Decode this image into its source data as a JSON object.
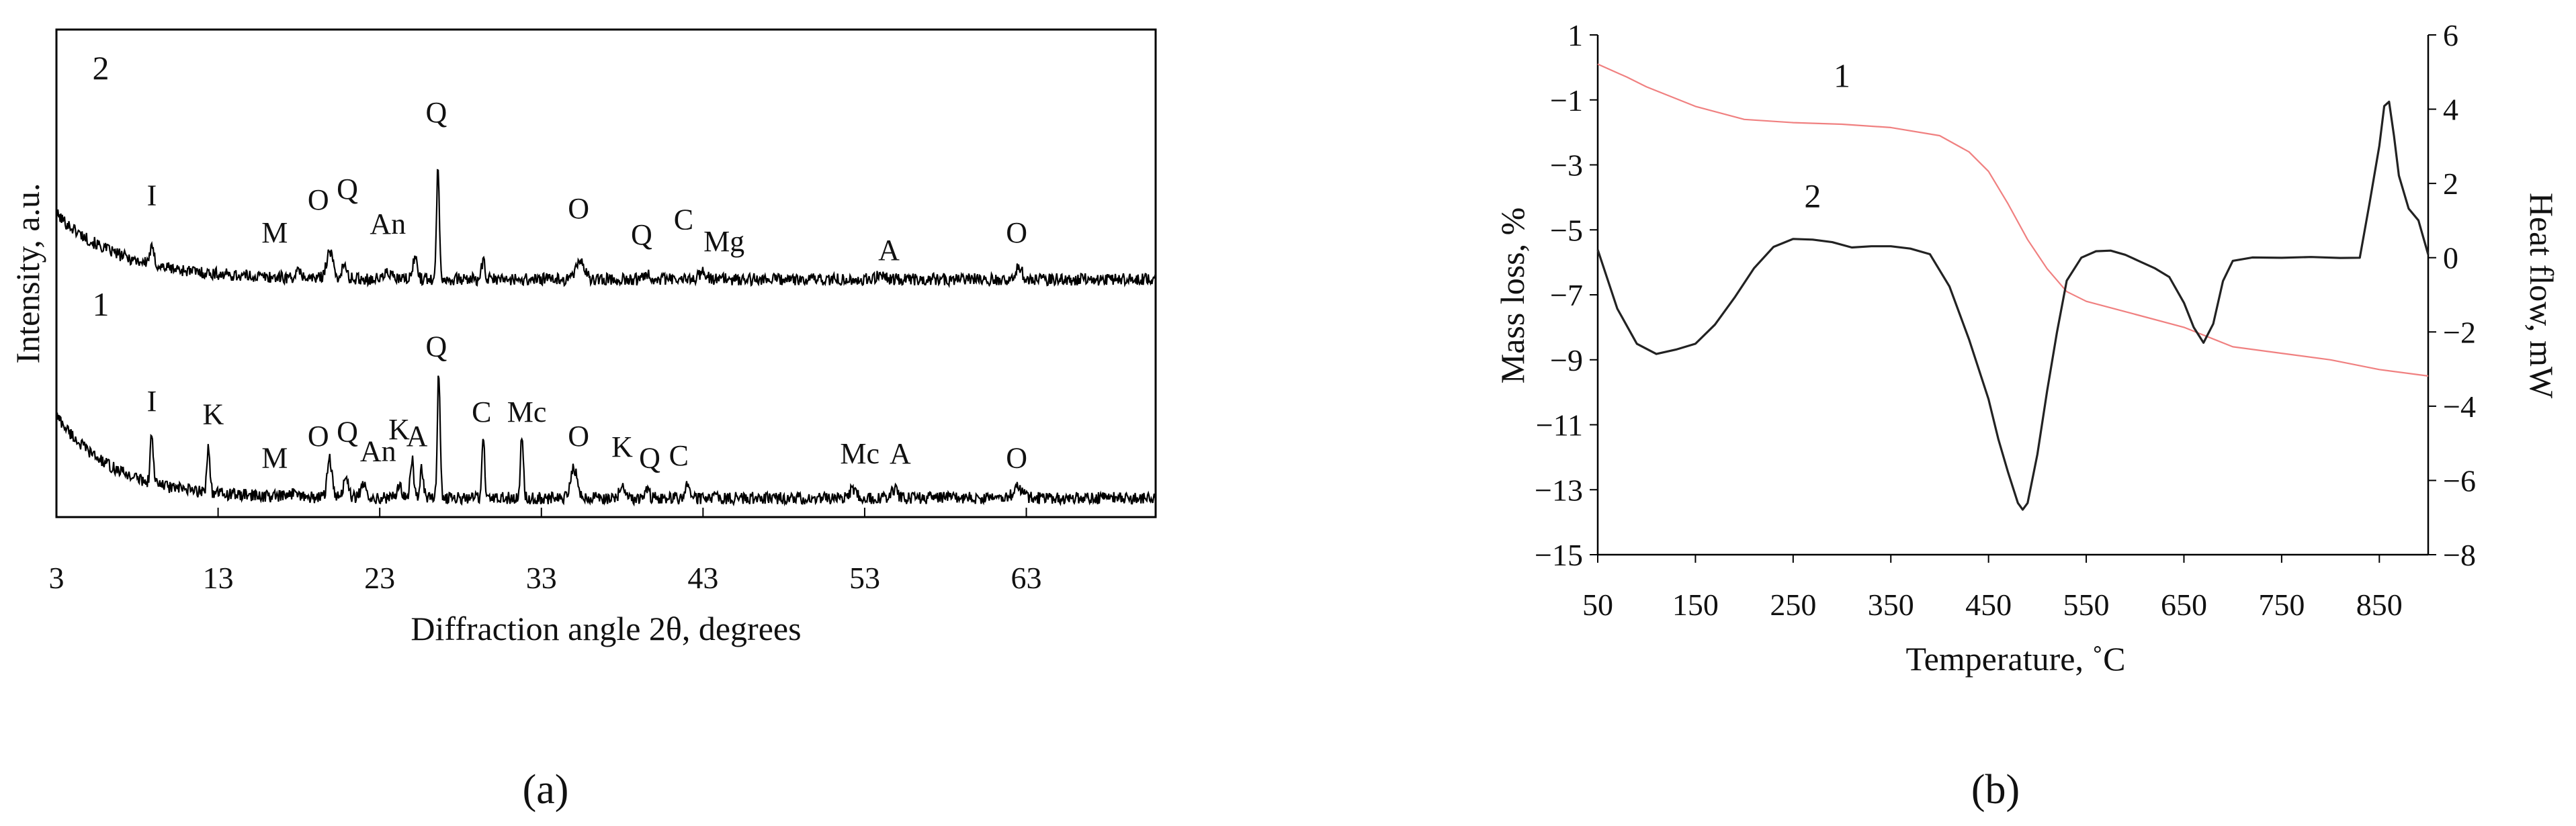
{
  "chart_data": [
    {
      "panel": "a",
      "panel_label": "(a)",
      "type": "line",
      "xlabel": "Diffraction angle 2θ, degrees",
      "ylabel": "Intensity, a.u.",
      "xlim": [
        3,
        71
      ],
      "x_ticks": [
        3,
        13,
        23,
        33,
        43,
        53,
        63
      ],
      "grid": false,
      "series": [
        {
          "name": "2",
          "baseline": 0.6,
          "decay_amplitude": 1.5,
          "decay_length": 4,
          "peaks": [
            {
              "x": 8.9,
              "h": 0.35,
              "w": 0.2
            },
            {
              "x": 18.0,
              "h": 0.12,
              "w": 0.3
            },
            {
              "x": 19.9,
              "h": 0.6,
              "w": 0.3
            },
            {
              "x": 20.8,
              "h": 0.3,
              "w": 0.2
            },
            {
              "x": 23.5,
              "h": 0.15,
              "w": 0.3
            },
            {
              "x": 25.2,
              "h": 0.5,
              "w": 0.2
            },
            {
              "x": 26.6,
              "h": 2.5,
              "w": 0.13
            },
            {
              "x": 29.4,
              "h": 0.4,
              "w": 0.15
            },
            {
              "x": 35.4,
              "h": 0.45,
              "w": 0.35
            },
            {
              "x": 39.5,
              "h": 0.15,
              "w": 0.3
            },
            {
              "x": 43.0,
              "h": 0.2,
              "w": 0.3
            },
            {
              "x": 54.0,
              "h": 0.12,
              "w": 0.4
            },
            {
              "x": 62.5,
              "h": 0.3,
              "w": 0.3
            }
          ],
          "peak_labels": [
            {
              "text": "I",
              "x": 8.9,
              "y": 2.3
            },
            {
              "text": "M",
              "x": 16.5,
              "y": 1.45
            },
            {
              "text": "O",
              "x": 19.2,
              "y": 2.2
            },
            {
              "text": "Q",
              "x": 21.0,
              "y": 2.45
            },
            {
              "text": "An",
              "x": 23.5,
              "y": 1.65
            },
            {
              "text": "Q",
              "x": 26.5,
              "y": 4.2
            },
            {
              "text": "O",
              "x": 35.3,
              "y": 2.0
            },
            {
              "text": "Q",
              "x": 39.2,
              "y": 1.4
            },
            {
              "text": "C",
              "x": 41.8,
              "y": 1.75
            },
            {
              "text": "Mg",
              "x": 44.3,
              "y": 1.25
            },
            {
              "text": "A",
              "x": 54.5,
              "y": 1.05
            },
            {
              "text": "O",
              "x": 62.4,
              "y": 1.45
            }
          ]
        },
        {
          "name": "1",
          "baseline": 0.25,
          "decay_amplitude": 1.9,
          "decay_length": 3.5,
          "peaks": [
            {
              "x": 8.9,
              "h": 1.2,
              "w": 0.12
            },
            {
              "x": 12.4,
              "h": 1.1,
              "w": 0.13
            },
            {
              "x": 17.8,
              "h": 0.15,
              "w": 0.3
            },
            {
              "x": 19.9,
              "h": 0.9,
              "w": 0.2
            },
            {
              "x": 20.9,
              "h": 0.5,
              "w": 0.2
            },
            {
              "x": 22.0,
              "h": 0.25,
              "w": 0.3
            },
            {
              "x": 24.2,
              "h": 0.3,
              "w": 0.2
            },
            {
              "x": 25.0,
              "h": 0.9,
              "w": 0.15
            },
            {
              "x": 25.6,
              "h": 0.7,
              "w": 0.15
            },
            {
              "x": 26.65,
              "h": 2.9,
              "w": 0.12
            },
            {
              "x": 29.4,
              "h": 1.5,
              "w": 0.12
            },
            {
              "x": 31.8,
              "h": 1.5,
              "w": 0.12
            },
            {
              "x": 35.0,
              "h": 0.7,
              "w": 0.3
            },
            {
              "x": 38.0,
              "h": 0.4,
              "w": 0.2
            },
            {
              "x": 39.5,
              "h": 0.25,
              "w": 0.2
            },
            {
              "x": 42.0,
              "h": 0.3,
              "w": 0.2
            },
            {
              "x": 52.3,
              "h": 0.2,
              "w": 0.3
            },
            {
              "x": 54.8,
              "h": 0.2,
              "w": 0.3
            },
            {
              "x": 62.5,
              "h": 0.25,
              "w": 0.4
            }
          ],
          "peak_labels": [
            {
              "text": "I",
              "x": 8.9,
              "y": 2.25
            },
            {
              "text": "K",
              "x": 12.7,
              "y": 1.95
            },
            {
              "text": "M",
              "x": 16.5,
              "y": 0.95
            },
            {
              "text": "O",
              "x": 19.2,
              "y": 1.45
            },
            {
              "text": "Q",
              "x": 21.0,
              "y": 1.55
            },
            {
              "text": "An",
              "x": 22.9,
              "y": 1.1
            },
            {
              "text": "K",
              "x": 24.2,
              "y": 1.6
            },
            {
              "text": "A",
              "x": 25.3,
              "y": 1.45
            },
            {
              "text": "Q",
              "x": 26.5,
              "y": 3.5
            },
            {
              "text": "C",
              "x": 29.3,
              "y": 2.0
            },
            {
              "text": "Mc",
              "x": 32.1,
              "y": 2.0
            },
            {
              "text": "O",
              "x": 35.3,
              "y": 1.45
            },
            {
              "text": "K",
              "x": 38.0,
              "y": 1.2
            },
            {
              "text": "Q",
              "x": 39.7,
              "y": 0.95
            },
            {
              "text": "C",
              "x": 41.5,
              "y": 1.0
            },
            {
              "text": "Mc",
              "x": 52.7,
              "y": 1.05
            },
            {
              "text": "A",
              "x": 55.2,
              "y": 1.05
            },
            {
              "text": "O",
              "x": 62.4,
              "y": 0.95
            }
          ]
        }
      ]
    },
    {
      "panel": "b",
      "panel_label": "(b)",
      "type": "line",
      "xlabel": "Temperature, ˚C",
      "ylabel": "Mass loss, %",
      "y2label": "Heat flow, mW",
      "xlim": [
        50,
        900
      ],
      "ylim": [
        -15,
        1
      ],
      "y2lim": [
        -8,
        6
      ],
      "x_ticks": [
        50,
        150,
        250,
        350,
        450,
        550,
        650,
        750,
        850
      ],
      "y_ticks": [
        1,
        -1,
        -3,
        -5,
        -7,
        -9,
        -11,
        -13,
        -15
      ],
      "y2_ticks": [
        6,
        4,
        2,
        0,
        -2,
        -4,
        -6,
        -8
      ],
      "grid": false,
      "series": [
        {
          "name": "1",
          "axis": "left",
          "color": "#f08080",
          "x": [
            50,
            80,
            100,
            150,
            200,
            250,
            300,
            350,
            400,
            430,
            450,
            470,
            490,
            510,
            530,
            550,
            600,
            650,
            700,
            750,
            800,
            850,
            900
          ],
          "y": [
            0.1,
            -0.3,
            -0.6,
            -1.2,
            -1.6,
            -1.7,
            -1.75,
            -1.85,
            -2.1,
            -2.6,
            -3.2,
            -4.2,
            -5.3,
            -6.2,
            -6.9,
            -7.2,
            -7.6,
            -8.0,
            -8.6,
            -8.8,
            -9.0,
            -9.3,
            -9.5
          ]
        },
        {
          "name": "2",
          "axis": "right",
          "color": "#222222",
          "x": [
            50,
            70,
            90,
            110,
            130,
            150,
            170,
            190,
            210,
            230,
            250,
            270,
            290,
            310,
            330,
            350,
            370,
            390,
            410,
            430,
            450,
            460,
            470,
            480,
            485,
            490,
            500,
            510,
            520,
            530,
            545,
            560,
            575,
            590,
            605,
            620,
            635,
            650,
            660,
            670,
            680,
            690,
            700,
            720,
            750,
            780,
            810,
            830,
            840,
            850,
            855,
            860,
            865,
            870,
            880,
            890,
            900
          ],
          "y": [
            0.2,
            -1.4,
            -2.3,
            -2.6,
            -2.5,
            -2.3,
            -1.8,
            -1.1,
            -0.3,
            0.3,
            0.5,
            0.5,
            0.4,
            0.3,
            0.3,
            0.3,
            0.25,
            0.1,
            -0.8,
            -2.2,
            -3.8,
            -4.9,
            -5.8,
            -6.6,
            -6.8,
            -6.6,
            -5.3,
            -3.6,
            -2.0,
            -0.6,
            0.0,
            0.2,
            0.2,
            0.1,
            -0.1,
            -0.3,
            -0.5,
            -1.2,
            -1.9,
            -2.3,
            -1.8,
            -0.6,
            -0.1,
            0.0,
            0.0,
            0.0,
            0.0,
            0.0,
            1.5,
            3.0,
            4.1,
            4.2,
            3.3,
            2.2,
            1.3,
            1.0,
            0.1
          ]
        }
      ],
      "curve_labels": [
        {
          "text": "1",
          "x": 300,
          "y": -0.6
        },
        {
          "text": "2",
          "x": 270,
          "y": -4.3
        }
      ]
    }
  ]
}
